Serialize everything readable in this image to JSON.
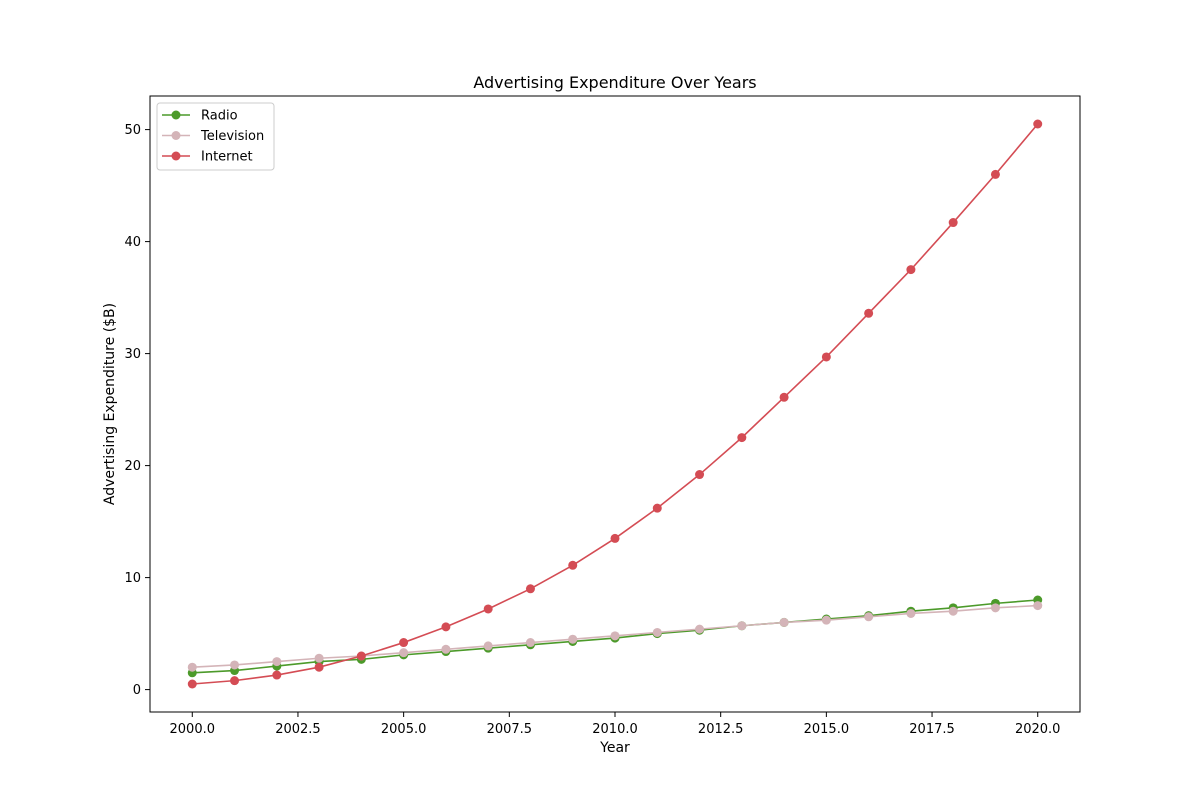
{
  "chart_data": {
    "type": "line",
    "title": "Advertising Expenditure Over Years",
    "xlabel": "Year",
    "ylabel": "Advertising Expenditure ($B)",
    "xlim": [
      1999.0,
      2021.0
    ],
    "ylim": [
      -2.0,
      53.0
    ],
    "xticks": [
      2000.0,
      2002.5,
      2005.0,
      2007.5,
      2010.0,
      2012.5,
      2015.0,
      2017.5,
      2020.0
    ],
    "xtick_labels": [
      "2000.0",
      "2002.5",
      "2005.0",
      "2007.5",
      "2010.0",
      "2012.5",
      "2015.0",
      "2017.5",
      "2020.0"
    ],
    "yticks": [
      0,
      10,
      20,
      30,
      40,
      50
    ],
    "ytick_labels": [
      "0",
      "10",
      "20",
      "30",
      "40",
      "50"
    ],
    "x": [
      2000,
      2001,
      2002,
      2003,
      2004,
      2005,
      2006,
      2007,
      2008,
      2009,
      2010,
      2011,
      2012,
      2013,
      2014,
      2015,
      2016,
      2017,
      2018,
      2019,
      2020
    ],
    "legend_position": "top-left",
    "grid": false,
    "series": [
      {
        "name": "Radio",
        "color": "#4c9a2a",
        "values": [
          1.5,
          1.7,
          2.1,
          2.5,
          2.7,
          3.1,
          3.4,
          3.7,
          4.0,
          4.3,
          4.6,
          5.0,
          5.3,
          5.7,
          6.0,
          6.3,
          6.6,
          7.0,
          7.3,
          7.7,
          8.0
        ]
      },
      {
        "name": "Television",
        "color": "#d4b4b8",
        "values": [
          2.0,
          2.2,
          2.5,
          2.8,
          3.0,
          3.3,
          3.6,
          3.9,
          4.2,
          4.5,
          4.8,
          5.1,
          5.4,
          5.7,
          6.0,
          6.2,
          6.5,
          6.8,
          7.0,
          7.3,
          7.5
        ]
      },
      {
        "name": "Internet",
        "color": "#d44c54",
        "values": [
          0.5,
          0.8,
          1.3,
          2.0,
          3.0,
          4.2,
          5.6,
          7.2,
          9.0,
          11.1,
          13.5,
          16.2,
          19.2,
          22.5,
          26.1,
          29.7,
          33.6,
          37.5,
          41.7,
          46.0,
          50.5
        ]
      }
    ]
  }
}
